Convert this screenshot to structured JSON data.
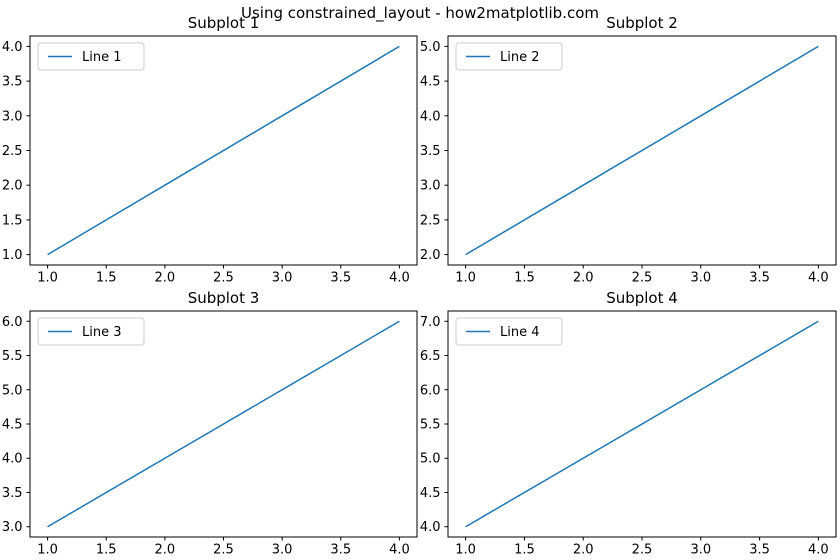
{
  "figure": {
    "title": "Using constrained_layout - how2matplotlib.com",
    "background_color": "#ffffff",
    "text_color": "#000000",
    "spine_color": "#000000",
    "legend_border_color": "#cccccc",
    "legend_background_color": "#ffffff"
  },
  "chart_data": [
    {
      "type": "line",
      "title": "Subplot 1",
      "x": [
        1,
        2,
        3,
        4
      ],
      "series": [
        {
          "name": "Line 1",
          "values": [
            1,
            2,
            3,
            4
          ],
          "color": "#1f77b4"
        }
      ],
      "xlim": [
        0.85,
        4.15
      ],
      "ylim": [
        0.85,
        4.15
      ],
      "xticks": [
        1.0,
        1.5,
        2.0,
        2.5,
        3.0,
        3.5,
        4.0
      ],
      "yticks": [
        1.0,
        1.5,
        2.0,
        2.5,
        3.0,
        3.5,
        4.0
      ],
      "legend": {
        "position": "upper left",
        "labels": [
          "Line 1"
        ]
      },
      "grid": false
    },
    {
      "type": "line",
      "title": "Subplot 2",
      "x": [
        1,
        2,
        3,
        4
      ],
      "series": [
        {
          "name": "Line 2",
          "values": [
            2,
            3,
            4,
            5
          ],
          "color": "#1f77b4"
        }
      ],
      "xlim": [
        0.85,
        4.15
      ],
      "ylim": [
        1.85,
        5.15
      ],
      "xticks": [
        1.0,
        1.5,
        2.0,
        2.5,
        3.0,
        3.5,
        4.0
      ],
      "yticks": [
        2.0,
        2.5,
        3.0,
        3.5,
        4.0,
        4.5,
        5.0
      ],
      "legend": {
        "position": "upper left",
        "labels": [
          "Line 2"
        ]
      },
      "grid": false
    },
    {
      "type": "line",
      "title": "Subplot 3",
      "x": [
        1,
        2,
        3,
        4
      ],
      "series": [
        {
          "name": "Line 3",
          "values": [
            3,
            4,
            5,
            6
          ],
          "color": "#1f77b4"
        }
      ],
      "xlim": [
        0.85,
        4.15
      ],
      "ylim": [
        2.85,
        6.15
      ],
      "xticks": [
        1.0,
        1.5,
        2.0,
        2.5,
        3.0,
        3.5,
        4.0
      ],
      "yticks": [
        3.0,
        3.5,
        4.0,
        4.5,
        5.0,
        5.5,
        6.0
      ],
      "legend": {
        "position": "upper left",
        "labels": [
          "Line 3"
        ]
      },
      "grid": false
    },
    {
      "type": "line",
      "title": "Subplot 4",
      "x": [
        1,
        2,
        3,
        4
      ],
      "series": [
        {
          "name": "Line 4",
          "values": [
            4,
            5,
            6,
            7
          ],
          "color": "#1f77b4"
        }
      ],
      "xlim": [
        0.85,
        4.15
      ],
      "ylim": [
        3.85,
        7.15
      ],
      "xticks": [
        1.0,
        1.5,
        2.0,
        2.5,
        3.0,
        3.5,
        4.0
      ],
      "yticks": [
        4.0,
        4.5,
        5.0,
        5.5,
        6.0,
        6.5,
        7.0
      ],
      "legend": {
        "position": "upper left",
        "labels": [
          "Line 4"
        ]
      },
      "grid": false
    }
  ]
}
